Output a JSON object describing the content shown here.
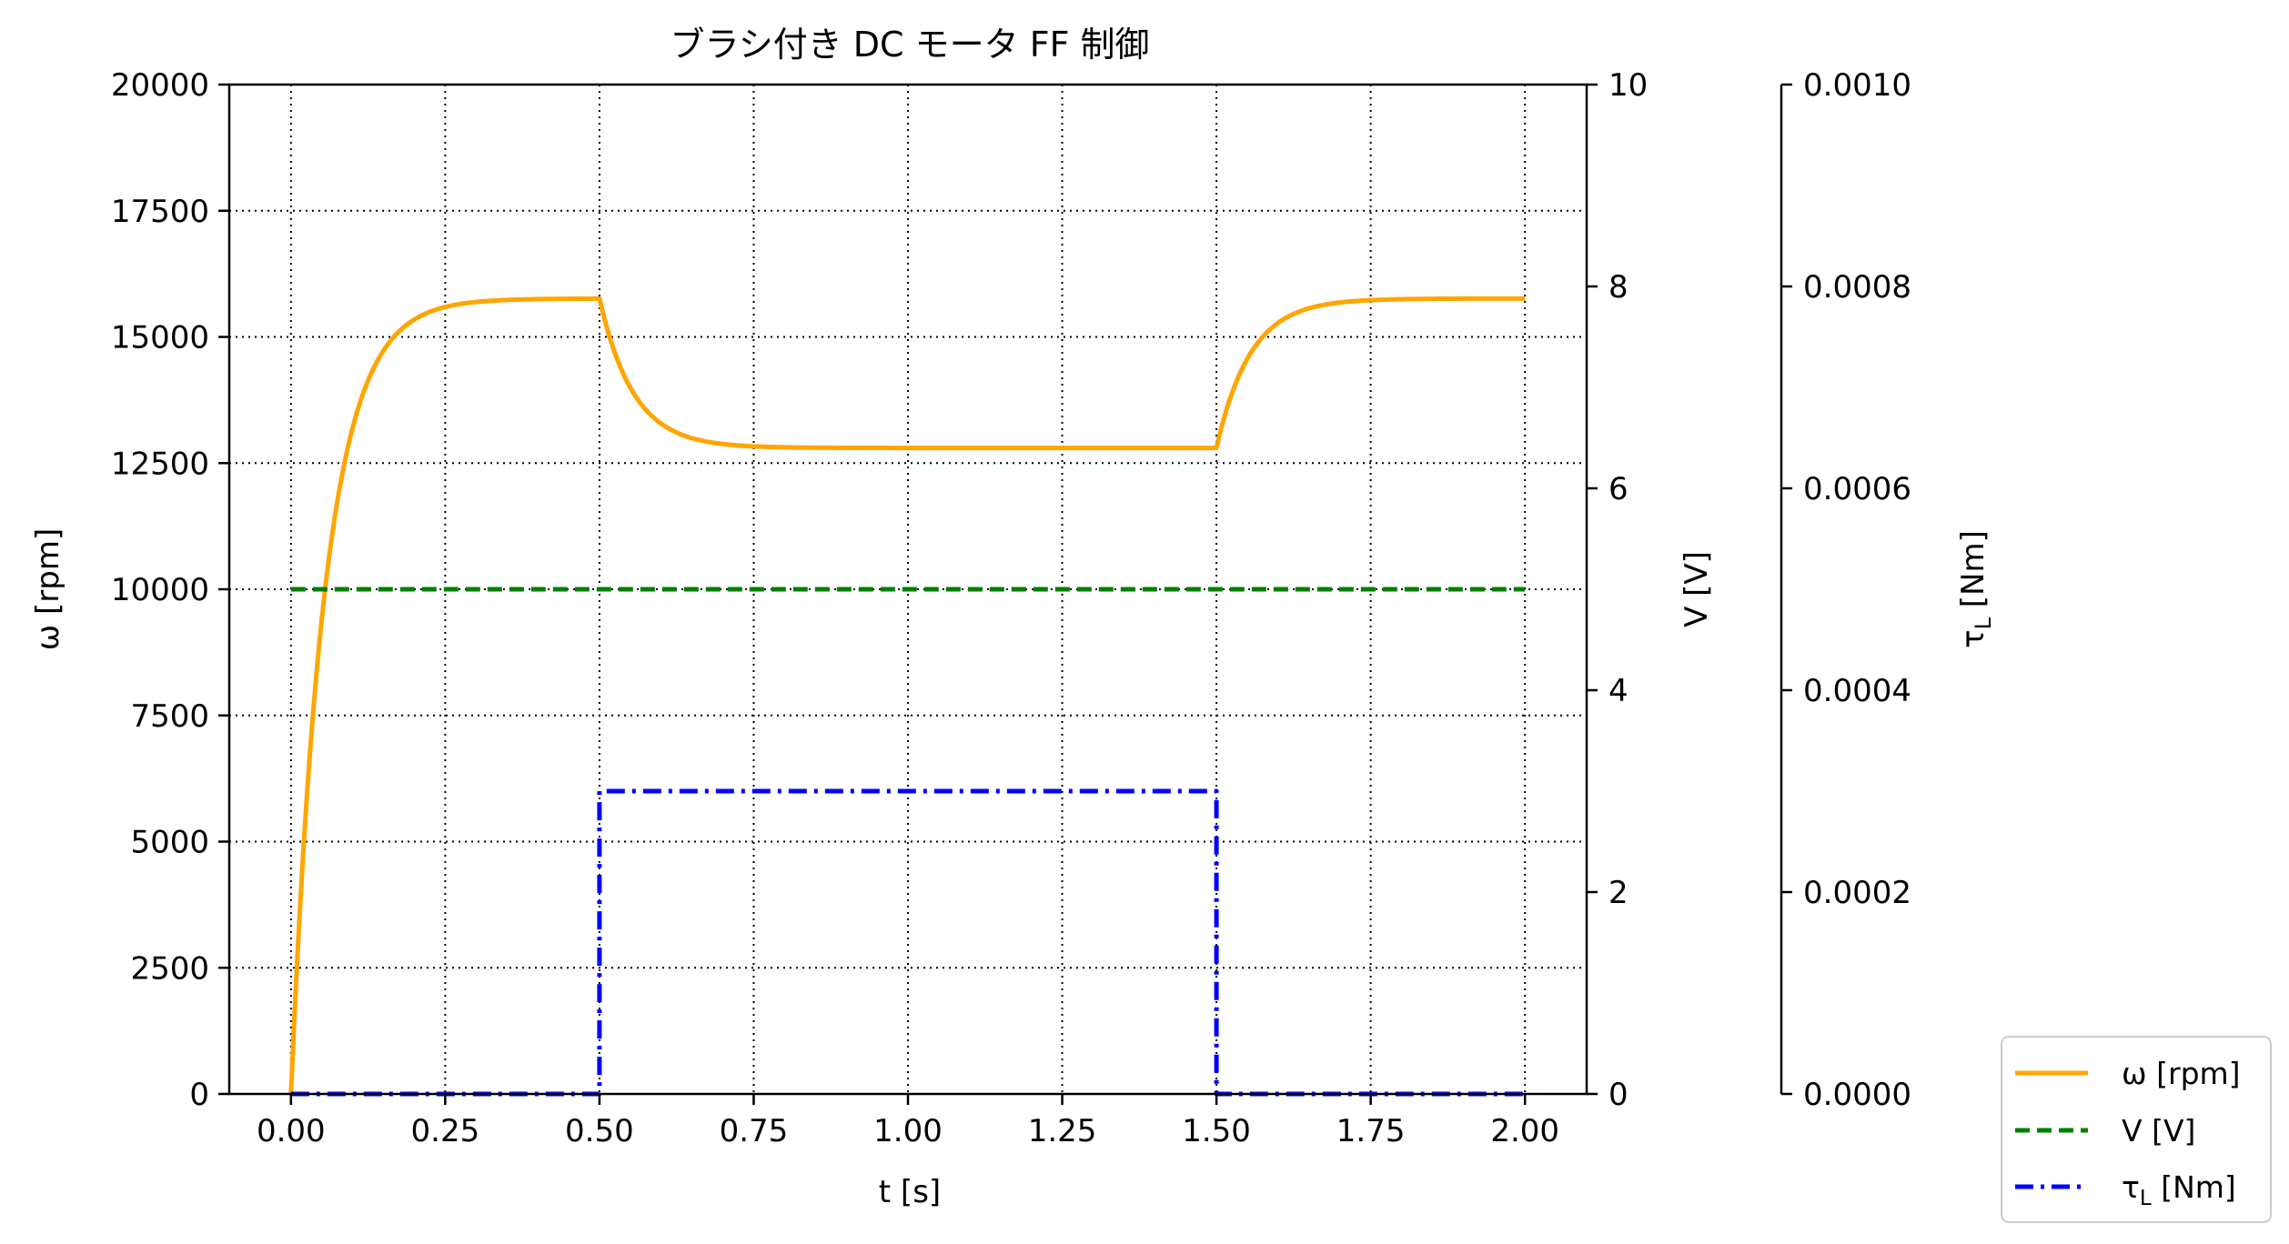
{
  "chart_data": {
    "type": "line",
    "title": "ブラシ付き DC モータ FF 制御",
    "xlabel": "t [s]",
    "xlim": [
      -0.1,
      2.1
    ],
    "x_ticks": [
      0.0,
      0.25,
      0.5,
      0.75,
      1.0,
      1.25,
      1.5,
      1.75,
      2.0
    ],
    "x_tick_labels": [
      "0.00",
      "0.25",
      "0.50",
      "0.75",
      "1.00",
      "1.25",
      "1.50",
      "1.75",
      "2.00"
    ],
    "grid": true,
    "legend_position": "bottom-right",
    "axes": [
      {
        "id": "omega",
        "side": "left",
        "label": "ω [rpm]",
        "ylim": [
          0,
          20000
        ],
        "ticks": [
          0,
          2500,
          5000,
          7500,
          10000,
          12500,
          15000,
          17500,
          20000
        ],
        "tick_labels": [
          "0",
          "2500",
          "5000",
          "7500",
          "10000",
          "12500",
          "15000",
          "17500",
          "20000"
        ]
      },
      {
        "id": "voltage",
        "side": "right",
        "label": "V [V]",
        "ylim": [
          0,
          10
        ],
        "ticks": [
          0,
          2,
          4,
          6,
          8,
          10
        ],
        "tick_labels": [
          "0",
          "2",
          "4",
          "6",
          "8",
          "10"
        ]
      },
      {
        "id": "torque",
        "side": "right-offset",
        "label": "τ",
        "label_subscript": "L",
        "label_suffix": " [Nm]",
        "ylim": [
          0,
          0.001
        ],
        "ticks": [
          0,
          0.0002,
          0.0004,
          0.0006,
          0.0008,
          0.001
        ],
        "tick_labels": [
          "0.0000",
          "0.0002",
          "0.0004",
          "0.0006",
          "0.0008",
          "0.0010"
        ]
      }
    ],
    "series": [
      {
        "name": "ω [rpm]",
        "axis": "omega",
        "color": "#ffa500",
        "style": "solid",
        "segments": [
          {
            "type": "exp",
            "t_start": 0.0,
            "t_end": 0.5,
            "y_start": 0,
            "y_final": 15760,
            "tau": 0.055
          },
          {
            "type": "exp",
            "t_start": 0.5,
            "t_end": 1.5,
            "y_start": 15760,
            "y_final": 12800,
            "tau": 0.055
          },
          {
            "type": "exp",
            "t_start": 1.5,
            "t_end": 2.0,
            "y_start": 12800,
            "y_final": 15760,
            "tau": 0.055
          }
        ]
      },
      {
        "name": "V [V]",
        "axis": "voltage",
        "color": "#008000",
        "style": "dashed",
        "x": [
          0.0,
          2.0
        ],
        "y": [
          5.0,
          5.0
        ]
      },
      {
        "name": "τ",
        "name_subscript": "L",
        "name_suffix": " [Nm]",
        "axis": "torque",
        "color": "#0000ff",
        "style": "dashdot",
        "x": [
          0.0,
          0.5,
          0.5,
          1.5,
          1.5,
          2.0
        ],
        "y": [
          0.0,
          0.0,
          0.0003,
          0.0003,
          0.0,
          0.0
        ]
      }
    ]
  }
}
